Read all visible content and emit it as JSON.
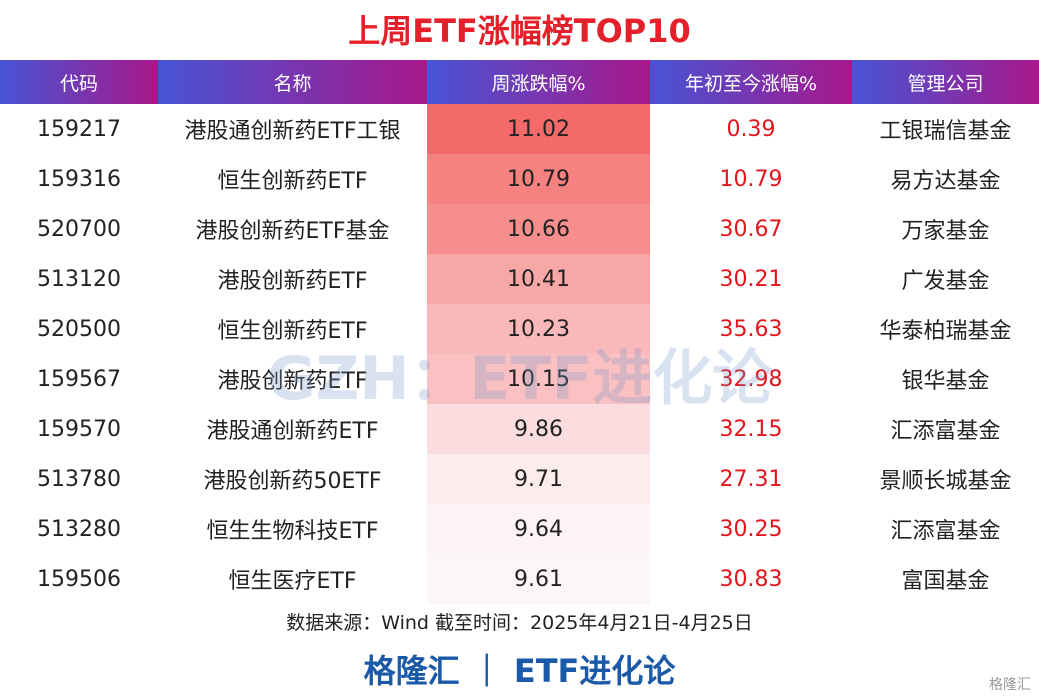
{
  "header": {
    "title": "上周ETF涨幅榜TOP10"
  },
  "table": {
    "columns": [
      "代码",
      "名称",
      "周涨跌幅%",
      "年初至今涨幅%",
      "管理公司"
    ],
    "rows": [
      [
        "159217",
        "港股通创新药ETF工银",
        11.02,
        0.39,
        "工银瑞信基金"
      ],
      [
        "159316",
        "恒生创新药ETF",
        10.79,
        10.79,
        "易方达基金"
      ],
      [
        "520700",
        "港股创新药ETF基金",
        10.66,
        30.67,
        "万家基金"
      ],
      [
        "513120",
        "港股创新药ETF",
        10.41,
        30.21,
        "广发基金"
      ],
      [
        "520500",
        "恒生创新药ETF",
        10.23,
        35.63,
        "华泰柏瑞基金"
      ],
      [
        "159567",
        "港股创新药ETF",
        10.15,
        32.98,
        "银华基金"
      ],
      [
        "159570",
        "港股通创新药ETF",
        9.86,
        32.15,
        "汇添富基金"
      ],
      [
        "513780",
        "港股创新药50ETF",
        9.71,
        27.31,
        "景顺长城基金"
      ],
      [
        "513280",
        "恒生生物科技ETF",
        9.64,
        30.25,
        "汇添富基金"
      ],
      [
        "159506",
        "恒生医疗ETF",
        9.61,
        30.83,
        "富国基金"
      ]
    ]
  },
  "watermark": "GZH：ETF进化论",
  "footer": {
    "source": "数据来源：Wind 截至时间：2025年4月21日-4月25日",
    "brand": "格隆汇 ｜ ETF进化论",
    "logo": "格隆汇"
  }
}
